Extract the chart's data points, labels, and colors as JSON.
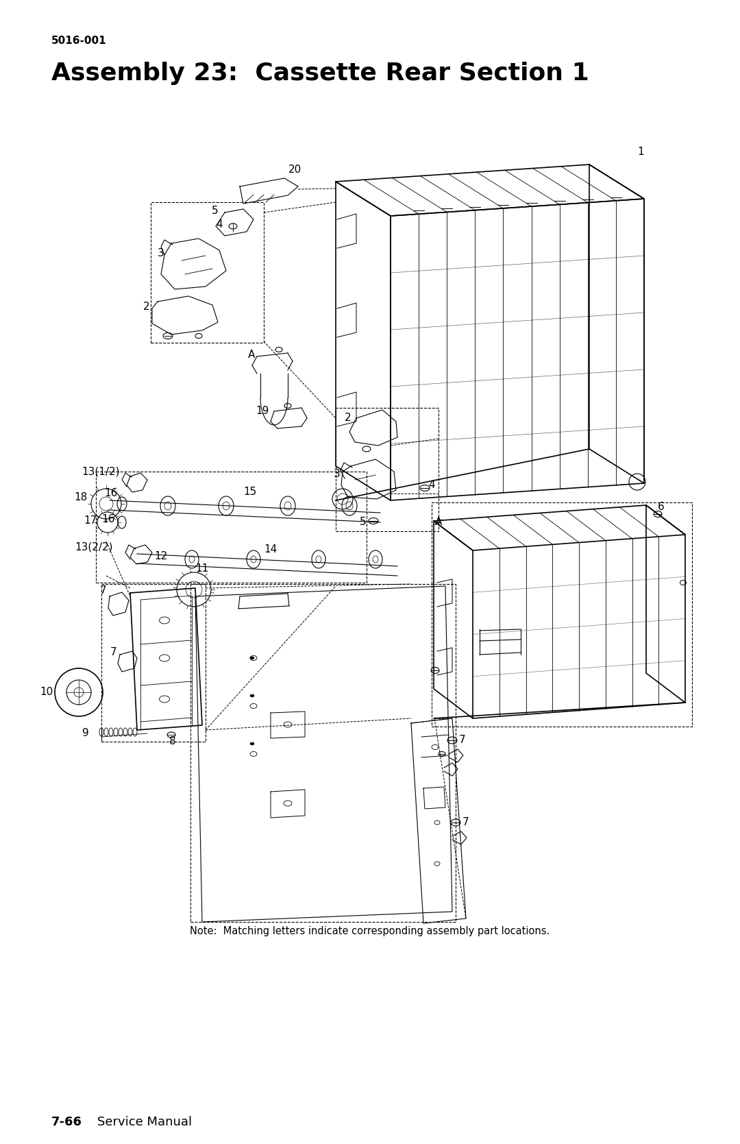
{
  "background_color": "#ffffff",
  "page_width": 10.8,
  "page_height": 16.69,
  "header_number": "5016-001",
  "title": "Assembly 23:  Cassette Rear Section 1",
  "footer_bold": "7-66",
  "footer_regular": "Service Manual",
  "note_text": "Note:  Matching letters indicate corresponding assembly part locations."
}
